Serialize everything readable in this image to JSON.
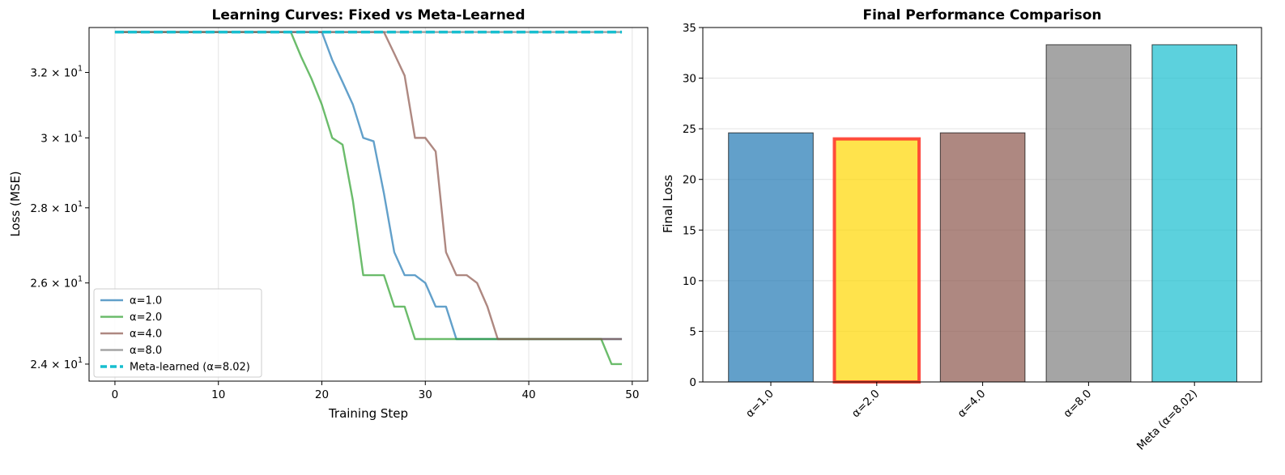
{
  "chart_data": [
    {
      "type": "line",
      "title": "Learning Curves: Fixed vs Meta-Learned",
      "xlabel": "Training Step",
      "ylabel": "Loss (MSE)",
      "xlim": [
        -2.5,
        51.5
      ],
      "ylim": [
        23.6,
        33.45
      ],
      "yscale": "log",
      "xticks": [
        0,
        10,
        20,
        30,
        40,
        50
      ],
      "yticks": [
        {
          "value": 24,
          "base": "2.4 × 10",
          "exp": "1"
        },
        {
          "value": 26,
          "base": "2.6 × 10",
          "exp": "1"
        },
        {
          "value": 28,
          "base": "2.8 × 10",
          "exp": "1"
        },
        {
          "value": 30,
          "base": "3 × 10",
          "exp": "1"
        },
        {
          "value": 32,
          "base": "3.2 × 10",
          "exp": "1"
        }
      ],
      "grid": true,
      "legend_position": "lower-left",
      "x": [
        0,
        1,
        2,
        3,
        4,
        5,
        6,
        7,
        8,
        9,
        10,
        11,
        12,
        13,
        14,
        15,
        16,
        17,
        18,
        19,
        20,
        21,
        22,
        23,
        24,
        25,
        26,
        27,
        28,
        29,
        30,
        31,
        32,
        33,
        34,
        35,
        36,
        37,
        38,
        39,
        40,
        41,
        42,
        43,
        44,
        45,
        46,
        47,
        48,
        49
      ],
      "series": [
        {
          "name": "α=1.0",
          "color": "#1f77b4",
          "style": "solid",
          "values": [
            33.3,
            33.3,
            33.3,
            33.3,
            33.3,
            33.3,
            33.3,
            33.3,
            33.3,
            33.3,
            33.3,
            33.3,
            33.3,
            33.3,
            33.3,
            33.3,
            33.3,
            33.3,
            33.3,
            33.3,
            33.3,
            32.4,
            31.7,
            31.0,
            30.0,
            29.9,
            28.4,
            26.8,
            26.2,
            26.2,
            26.0,
            25.4,
            25.4,
            24.6,
            24.6,
            24.6,
            24.6,
            24.6,
            24.6,
            24.6,
            24.6,
            24.6,
            24.6,
            24.6,
            24.6,
            24.6,
            24.6,
            24.6,
            24.6,
            24.6
          ]
        },
        {
          "name": "α=2.0",
          "color": "#2ca02c",
          "style": "solid",
          "values": [
            33.3,
            33.3,
            33.3,
            33.3,
            33.3,
            33.3,
            33.3,
            33.3,
            33.3,
            33.3,
            33.3,
            33.3,
            33.3,
            33.3,
            33.3,
            33.3,
            33.3,
            33.3,
            32.5,
            31.8,
            31.0,
            30.0,
            29.8,
            28.2,
            26.2,
            26.2,
            26.2,
            25.4,
            25.4,
            24.6,
            24.6,
            24.6,
            24.6,
            24.6,
            24.6,
            24.6,
            24.6,
            24.6,
            24.6,
            24.6,
            24.6,
            24.6,
            24.6,
            24.6,
            24.6,
            24.6,
            24.6,
            24.6,
            24.0,
            24.0
          ]
        },
        {
          "name": "α=4.0",
          "color": "#8c564b",
          "style": "solid",
          "values": [
            33.3,
            33.3,
            33.3,
            33.3,
            33.3,
            33.3,
            33.3,
            33.3,
            33.3,
            33.3,
            33.3,
            33.3,
            33.3,
            33.3,
            33.3,
            33.3,
            33.3,
            33.3,
            33.3,
            33.3,
            33.3,
            33.3,
            33.3,
            33.3,
            33.3,
            33.3,
            33.3,
            32.6,
            31.9,
            30.0,
            30.0,
            29.6,
            26.8,
            26.2,
            26.2,
            26.0,
            25.4,
            24.6,
            24.6,
            24.6,
            24.6,
            24.6,
            24.6,
            24.6,
            24.6,
            24.6,
            24.6,
            24.6,
            24.6,
            24.6
          ]
        },
        {
          "name": "α=8.0",
          "color": "#7f7f7f",
          "style": "solid",
          "values": [
            33.3,
            33.3,
            33.3,
            33.3,
            33.3,
            33.3,
            33.3,
            33.3,
            33.3,
            33.3,
            33.3,
            33.3,
            33.3,
            33.3,
            33.3,
            33.3,
            33.3,
            33.3,
            33.3,
            33.3,
            33.3,
            33.3,
            33.3,
            33.3,
            33.3,
            33.3,
            33.3,
            33.3,
            33.3,
            33.3,
            33.3,
            33.3,
            33.3,
            33.3,
            33.3,
            33.3,
            33.3,
            33.3,
            33.3,
            33.3,
            33.3,
            33.3,
            33.3,
            33.3,
            33.3,
            33.3,
            33.3,
            33.3,
            33.3,
            33.3
          ]
        },
        {
          "name": "Meta-learned (α=8.02)",
          "color": "#17becf",
          "style": "dashed",
          "values": [
            33.3,
            33.3,
            33.3,
            33.3,
            33.3,
            33.3,
            33.3,
            33.3,
            33.3,
            33.3,
            33.3,
            33.3,
            33.3,
            33.3,
            33.3,
            33.3,
            33.3,
            33.3,
            33.3,
            33.3,
            33.3,
            33.3,
            33.3,
            33.3,
            33.3,
            33.3,
            33.3,
            33.3,
            33.3,
            33.3,
            33.3,
            33.3,
            33.3,
            33.3,
            33.3,
            33.3,
            33.3,
            33.3,
            33.3,
            33.3,
            33.3,
            33.3,
            33.3,
            33.3,
            33.3,
            33.3,
            33.3,
            33.3,
            33.3,
            33.3
          ]
        }
      ]
    },
    {
      "type": "bar",
      "title": "Final Performance Comparison",
      "xlabel": "",
      "ylabel": "Final Loss",
      "ylim": [
        0,
        35
      ],
      "yticks": [
        0,
        5,
        10,
        15,
        20,
        25,
        30,
        35
      ],
      "grid": true,
      "categories": [
        "α=1.0",
        "α=2.0",
        "α=4.0",
        "α=8.0",
        "Meta (α=8.02)"
      ],
      "values": [
        24.6,
        24.0,
        24.6,
        33.3,
        33.3
      ],
      "colors": [
        "#1f77b4",
        "#ffd700",
        "#8c564b",
        "#7f7f7f",
        "#17becf"
      ],
      "highlight_index": 1,
      "highlight_color": "#ff3b30"
    }
  ]
}
